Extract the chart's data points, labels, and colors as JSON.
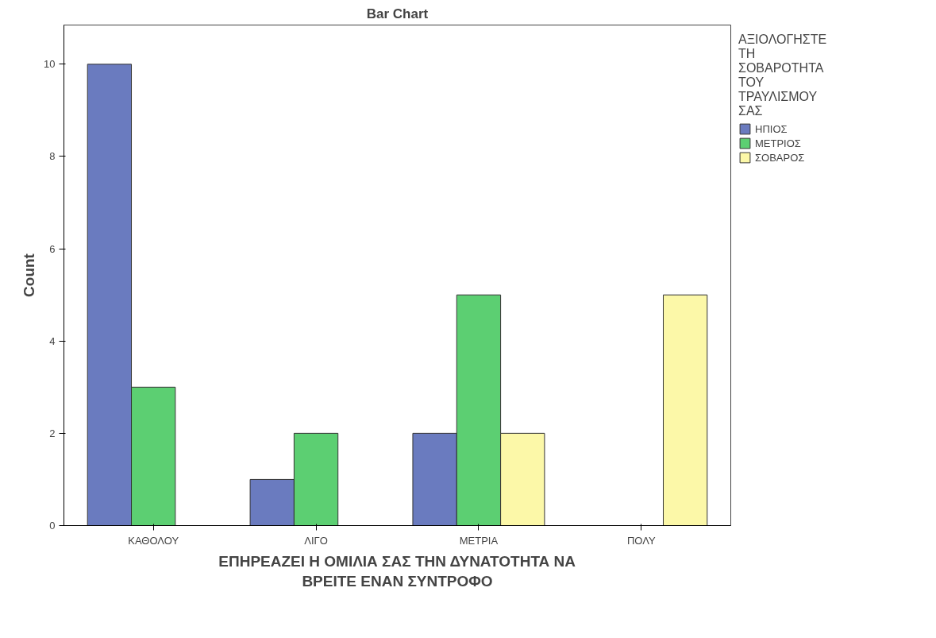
{
  "chart_data": {
    "type": "bar",
    "title": "Bar Chart",
    "xlabel": "ΕΠΗΡΕΑΖΕΙ Η ΟΜΙΛΙΑ ΣΑΣ ΤΗΝ ΔΥΝΑΤΟΤΗΤΑ ΝΑ ΒΡΕΙΤΕ ΕΝΑΝ ΣΥΝΤΡΟΦΟ",
    "ylabel": "Count",
    "legend_title": "ΑΞΙΟΛΟΓΗΣΤΕ ΤΗ ΣΟΒΑΡΟΤΗΤΑ ΤΟΥ ΤΡΑΥΛΙΣΜΟΥ ΣΑΣ",
    "categories": [
      "ΚΑΘΟΛΟΥ",
      "ΛΙΓΟ",
      "ΜΕΤΡΙΑ",
      "ΠΟΛΥ"
    ],
    "series": [
      {
        "name": "ΗΠΙΟΣ",
        "color": "#6a7bbf",
        "values": [
          10,
          1,
          2,
          null
        ]
      },
      {
        "name": "ΜΕΤΡΙΟΣ",
        "color": "#5ccf72",
        "values": [
          3,
          2,
          5,
          null
        ]
      },
      {
        "name": "ΣΟΒΑΡΟΣ",
        "color": "#fcf8a8",
        "values": [
          null,
          null,
          2,
          5
        ]
      }
    ],
    "ylim": [
      0,
      10.85
    ],
    "yticks": [
      0,
      2,
      4,
      6,
      8,
      10
    ],
    "grid": false,
    "legend": "top right"
  }
}
